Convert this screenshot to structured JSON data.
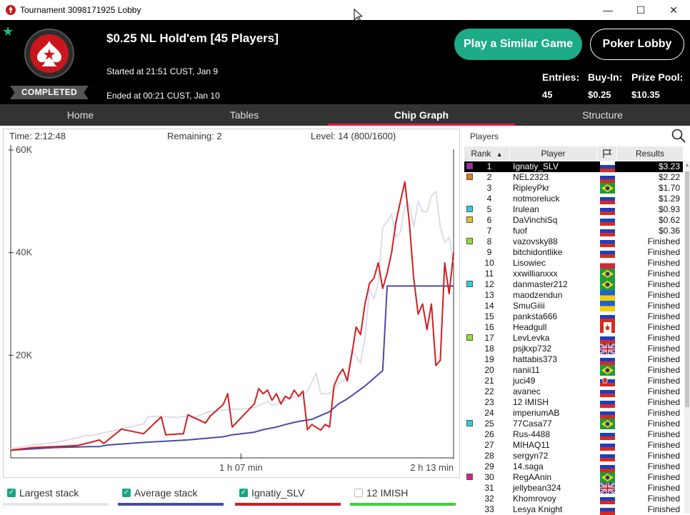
{
  "window": {
    "title": "Tournament 3098171925 Lobby",
    "minimize": "—",
    "maximize": "☐",
    "close": "✕"
  },
  "header": {
    "status": "COMPLETED",
    "game_title": "$0.25 NL Hold'em [45 Players]",
    "started": "Started at 21:51 CUST, Jan 9",
    "ended": "Ended at 00:21 CUST, Jan 10",
    "play_similar": "Play a Similar Game",
    "poker_lobby": "Poker Lobby",
    "entries_label": "Entries:",
    "entries_value": "45",
    "buyin_label": "Buy-In:",
    "buyin_value": "$0.25",
    "prize_label": "Prize Pool:",
    "prize_value": "$10.35",
    "colors": {
      "accent_green": "#1dab87",
      "logo_red": "#c9161c"
    }
  },
  "tabs": [
    {
      "label": "Home",
      "active": false
    },
    {
      "label": "Tables",
      "active": false
    },
    {
      "label": "Chip Graph",
      "active": true
    },
    {
      "label": "Structure",
      "active": false
    }
  ],
  "chart_info": {
    "time": "Time: 2:12:48",
    "remaining": "Remaining: 2",
    "level": "Level: 14 (800/1600)"
  },
  "chart_data": {
    "type": "line",
    "ytick_labels": [
      "60K",
      "40K",
      "20K"
    ],
    "yticks": [
      60000,
      40000,
      20000
    ],
    "ylim": [
      0,
      60000
    ],
    "xtick_labels": [
      "1 h 07 min",
      "2 h 13 min"
    ],
    "xlim": [
      0,
      100
    ],
    "series": [
      {
        "name": "Largest stack",
        "color": "#dcdcef",
        "x": [
          0,
          5,
          10,
          15,
          17,
          18,
          25,
          30,
          31,
          33,
          36,
          38,
          39,
          41,
          45,
          46,
          50,
          52,
          55,
          58,
          59,
          64,
          65,
          67,
          69,
          70,
          72,
          74,
          75,
          76,
          77,
          79,
          80,
          81,
          82,
          83,
          84,
          85,
          86,
          87,
          88,
          89,
          90,
          91,
          92,
          93,
          94,
          95,
          96,
          97,
          98,
          99,
          100
        ],
        "y": [
          1800,
          2500,
          3000,
          3900,
          4400,
          4300,
          5700,
          6600,
          8000,
          8100,
          7900,
          7900,
          8100,
          7700,
          9100,
          9100,
          9500,
          9500,
          9800,
          11000,
          10200,
          11900,
          11800,
          13000,
          16500,
          12500,
          12500,
          14500,
          15000,
          16000,
          21000,
          18500,
          23500,
          33000,
          31000,
          34000,
          45000,
          46000,
          47500,
          43000,
          44000,
          49000,
          49500,
          45000,
          50000,
          48000,
          48000,
          51000,
          52000,
          45000,
          42000,
          43000,
          38000
        ]
      },
      {
        "name": "Average stack",
        "color": "#4b4ba8",
        "x": [
          0,
          10,
          18,
          20,
          22,
          30,
          40,
          48,
          50,
          55,
          57,
          60,
          62,
          65,
          68,
          72,
          74,
          76,
          80,
          84,
          85,
          100
        ],
        "y": [
          1500,
          2000,
          2200,
          2200,
          2500,
          3000,
          3500,
          4100,
          4500,
          5000,
          5500,
          6000,
          6500,
          7100,
          7500,
          9000,
          10500,
          11500,
          14000,
          17000,
          33500,
          33500
        ]
      },
      {
        "name": "Ignatiy_SLV",
        "color": "#d01f1f",
        "x": [
          0,
          5,
          10,
          15,
          18,
          20,
          21,
          25,
          30,
          34,
          35,
          39,
          40,
          44,
          45,
          48,
          49,
          50,
          55,
          56,
          57,
          58,
          59,
          60,
          61,
          62,
          63,
          64,
          65,
          66,
          67,
          68,
          70,
          71,
          72,
          73,
          74,
          75,
          76,
          77,
          78,
          79,
          80,
          81,
          82,
          83,
          84,
          85,
          86,
          87,
          88,
          89,
          90,
          91,
          92,
          93,
          94,
          95,
          96,
          97,
          98,
          99,
          100
        ],
        "y": [
          1500,
          2000,
          2200,
          2400,
          3000,
          3500,
          2800,
          5600,
          4700,
          8000,
          4500,
          4700,
          8400,
          6800,
          8100,
          10400,
          12500,
          6000,
          10500,
          13500,
          12500,
          13200,
          11200,
          12500,
          10500,
          12000,
          11500,
          13200,
          12000,
          13000,
          5500,
          6500,
          5400,
          6500,
          6000,
          14000,
          16000,
          17300,
          15000,
          20000,
          25500,
          24000,
          30000,
          34000,
          35000,
          38000,
          33000,
          36000,
          40000,
          46000,
          50000,
          53800,
          46000,
          35000,
          28000,
          30000,
          25000,
          30000,
          18000,
          19000,
          38000,
          32000,
          40000
        ]
      },
      {
        "name": "12 IMISH",
        "color": "#3dd13d",
        "x": [],
        "y": []
      }
    ]
  },
  "legend": [
    {
      "label": "Largest stack",
      "checked": true,
      "color": "#e6e6f2"
    },
    {
      "label": "Average stack",
      "checked": true,
      "color": "#4b4ba8"
    },
    {
      "label": "Ignatiy_SLV",
      "checked": true,
      "color": "#d01f1f"
    },
    {
      "label": "12 IMISH",
      "checked": false,
      "color": "#3dd13d"
    }
  ],
  "players": {
    "title": "Players",
    "col_rank": "Rank",
    "col_player": "Player",
    "col_results": "Results",
    "rows": [
      {
        "rank": "1",
        "name": "Ignatiy_SLV",
        "flag": "ru",
        "result": "$3.23",
        "swatch": "#b21ec6",
        "selected": true
      },
      {
        "rank": "2",
        "name": "NEL2323",
        "flag": "ru",
        "result": "$2.22",
        "swatch": "#e07b17"
      },
      {
        "rank": "3",
        "name": "RipleyPkr",
        "flag": "br",
        "result": "$1.70"
      },
      {
        "rank": "4",
        "name": "notmoreluck",
        "flag": "ru",
        "result": "$1.29"
      },
      {
        "rank": "5",
        "name": "Irulean",
        "flag": "ru",
        "result": "$0.93",
        "swatch": "#22d3e0"
      },
      {
        "rank": "6",
        "name": "DaVinchiSq",
        "flag": "ru",
        "result": "$0.62",
        "swatch": "#e0c21d"
      },
      {
        "rank": "7",
        "name": "fuof",
        "flag": "ru",
        "result": "$0.36"
      },
      {
        "rank": "8",
        "name": "vazovsky88",
        "flag": "ru",
        "result": "Finished",
        "swatch": "#8ee02a"
      },
      {
        "rank": "9",
        "name": "bitchidontlike",
        "flag": "ru",
        "result": "Finished"
      },
      {
        "rank": "10",
        "name": "Lisowiec",
        "flag": "pl",
        "result": "Finished"
      },
      {
        "rank": "11",
        "name": "xxwillianxxx",
        "flag": "br",
        "result": "Finished"
      },
      {
        "rank": "12",
        "name": "danmaster212",
        "flag": "br",
        "result": "Finished",
        "swatch": "#22d3e0"
      },
      {
        "rank": "13",
        "name": "maodzendun",
        "flag": "ua",
        "result": "Finished"
      },
      {
        "rank": "14",
        "name": "SmuGiiii",
        "flag": "ua",
        "result": "Finished"
      },
      {
        "rank": "15",
        "name": "panksta666",
        "flag": "ru",
        "result": "Finished"
      },
      {
        "rank": "16",
        "name": "Headgull",
        "flag": "ca",
        "result": "Finished"
      },
      {
        "rank": "17",
        "name": "LevLevka",
        "flag": "ru",
        "result": "Finished",
        "swatch": "#8ee02a"
      },
      {
        "rank": "18",
        "name": "psjkxp732",
        "flag": "gb",
        "result": "Finished"
      },
      {
        "rank": "19",
        "name": "hattabis373",
        "flag": "ru",
        "result": "Finished"
      },
      {
        "rank": "20",
        "name": "nanii11",
        "flag": "br",
        "result": "Finished"
      },
      {
        "rank": "21",
        "name": "juci49",
        "flag": "sk",
        "result": "Finished"
      },
      {
        "rank": "22",
        "name": "avanec",
        "flag": "ru",
        "result": "Finished"
      },
      {
        "rank": "23",
        "name": "12 IMISH",
        "flag": "ru",
        "result": "Finished"
      },
      {
        "rank": "24",
        "name": "imperiumAB",
        "flag": "ru",
        "result": "Finished"
      },
      {
        "rank": "25",
        "name": "77Casa77",
        "flag": "br",
        "result": "Finished",
        "swatch": "#22d3e0"
      },
      {
        "rank": "26",
        "name": "Rus-4488",
        "flag": "ru",
        "result": "Finished"
      },
      {
        "rank": "27",
        "name": "MIHAQ11",
        "flag": "ru",
        "result": "Finished"
      },
      {
        "rank": "28",
        "name": "sergyn72",
        "flag": "ru",
        "result": "Finished"
      },
      {
        "rank": "29",
        "name": "14.saga",
        "flag": "ru",
        "result": "Finished"
      },
      {
        "rank": "30",
        "name": "RegAAnin",
        "flag": "br",
        "result": "Finished",
        "swatch": "#d61b8a"
      },
      {
        "rank": "31",
        "name": "jellybean324",
        "flag": "gb",
        "result": "Finished"
      },
      {
        "rank": "32",
        "name": "Khomrovoy",
        "flag": "ru",
        "result": "Finished"
      },
      {
        "rank": "33",
        "name": "Lesya Knight",
        "flag": "ru",
        "result": "Finished"
      }
    ]
  }
}
